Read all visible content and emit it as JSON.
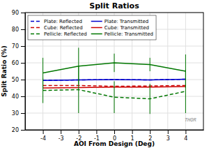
{
  "chart_data": {
    "type": "line",
    "title": "Split Ratios",
    "x_label": "AOI From Design (Deg)",
    "y_label": "Split Ratio (%)",
    "x": [
      -4,
      -2,
      0,
      2,
      4
    ],
    "xlim": [
      -5,
      5
    ],
    "ylim": [
      20,
      90
    ],
    "xticks": [
      -4,
      -3,
      -2,
      -1,
      0,
      1,
      2,
      3,
      4
    ],
    "yticks": [
      20,
      30,
      40,
      50,
      60,
      70,
      80,
      90
    ],
    "grid": true,
    "legend": "upper left",
    "annotations": [
      "THOR"
    ],
    "series": [
      {
        "name": "Plate: Reflected",
        "color": "#0000cc",
        "line_style": "dashed",
        "values": [
          49.5,
          49.8,
          50.0,
          49.8,
          50.2
        ]
      },
      {
        "name": "Plate: Transmitted",
        "color": "#0000cc",
        "line_style": "solid",
        "values": [
          49.5,
          49.8,
          50.0,
          49.8,
          50.2
        ]
      },
      {
        "name": "Cube: Reflected",
        "color": "#cc0000",
        "line_style": "dashed",
        "values": [
          46.5,
          46.5,
          46.0,
          46.2,
          46.5
        ]
      },
      {
        "name": "Cube: Transmitted",
        "color": "#cc0000",
        "line_style": "solid",
        "values": [
          45.0,
          45.2,
          45.5,
          45.5,
          45.8
        ]
      },
      {
        "name": "Pellicle: Reflected",
        "color": "#007700",
        "line_style": "dashed",
        "values": [
          43.5,
          44.0,
          39.5,
          38.5,
          43.0
        ],
        "errors": [
          7.5,
          14.0,
          9.5,
          9.0,
          13.0
        ]
      },
      {
        "name": "Pellicle: Transmitted",
        "color": "#007700",
        "line_style": "solid",
        "values": [
          54.0,
          58.0,
          60.0,
          59.0,
          55.0
        ],
        "errors": [
          9.0,
          11.0,
          5.5,
          4.0,
          10.0
        ]
      }
    ]
  }
}
